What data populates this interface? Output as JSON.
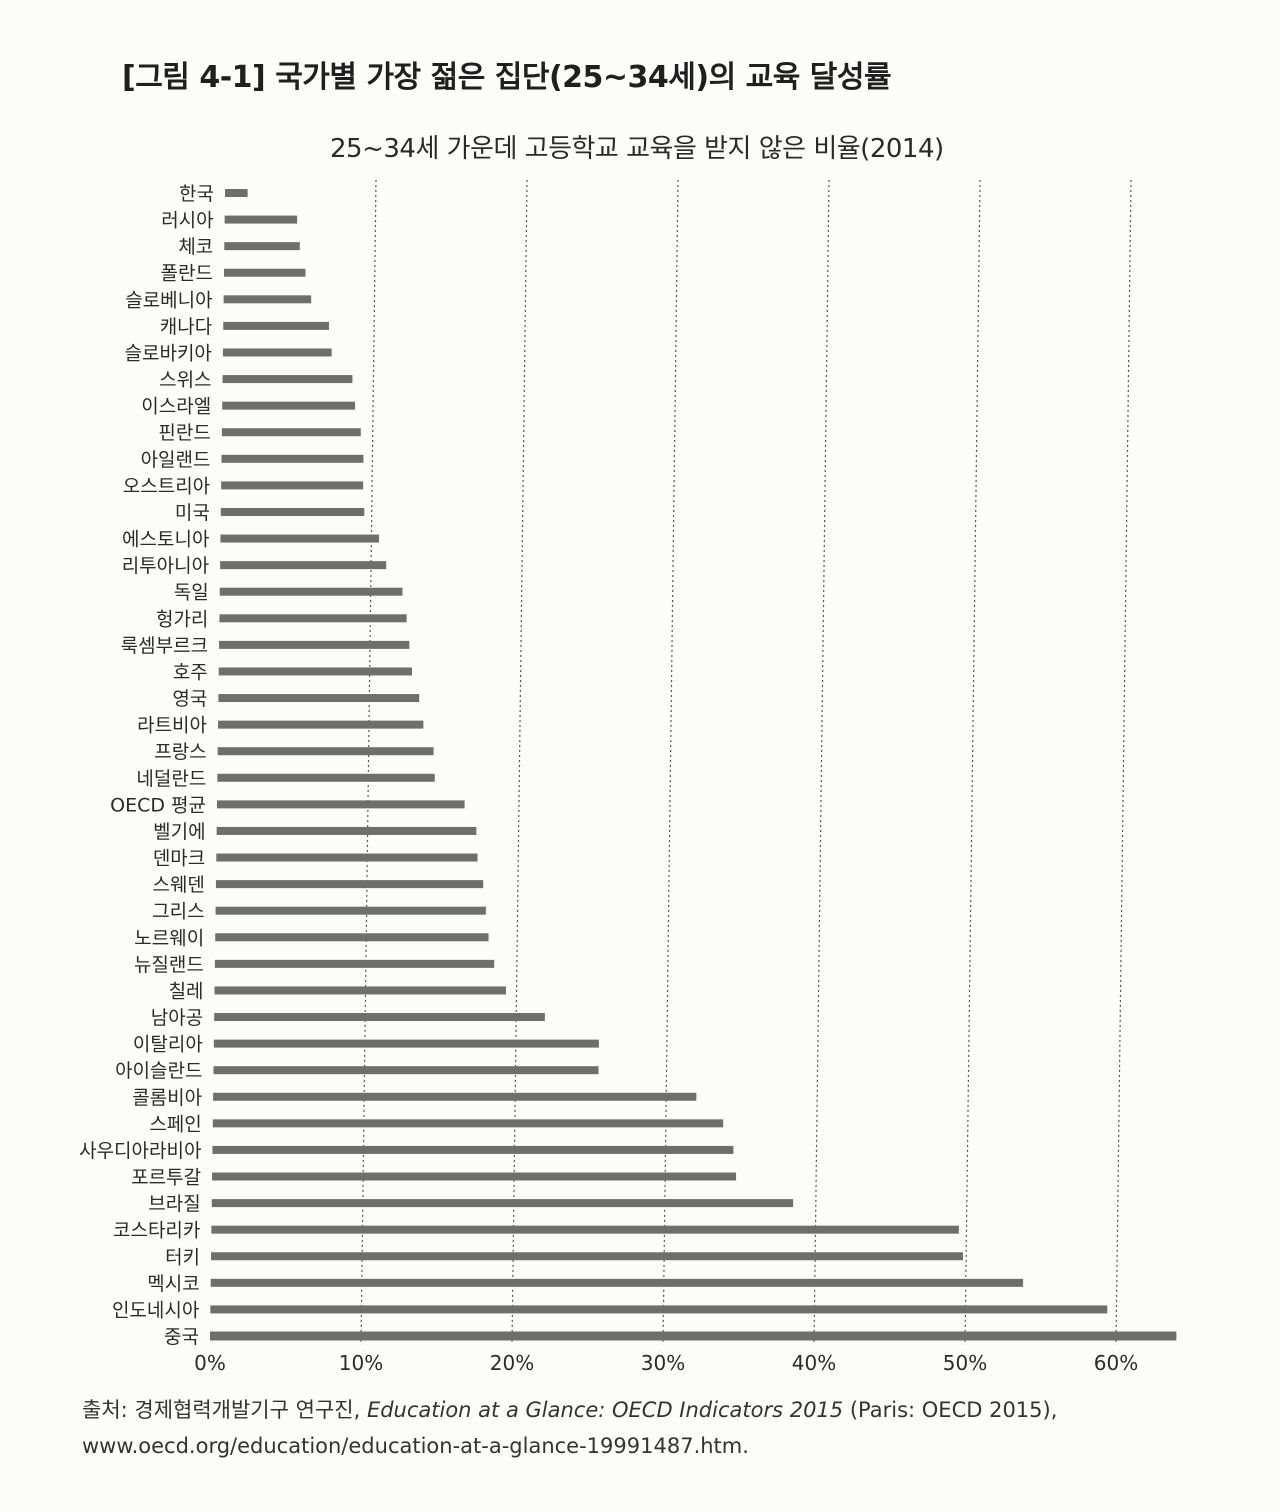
{
  "figure": {
    "title": "[그림 4-1]  국가별 가장 젊은 집단(25~34세)의 교육 달성률"
  },
  "chart_data": {
    "type": "bar",
    "orientation": "horizontal",
    "title": "25~34세 가운데 고등학교 교육을 받지 않은 비율(2014)",
    "xlabel": "",
    "ylabel": "",
    "xlim": [
      0,
      64
    ],
    "ticks": [
      0,
      10,
      20,
      30,
      40,
      50,
      60
    ],
    "tick_labels": [
      "0%",
      "10%",
      "20%",
      "30%",
      "40%",
      "50%",
      "60%"
    ],
    "grid": "vertical-dotted",
    "categories": [
      "한국",
      "러시아",
      "체코",
      "폴란드",
      "슬로베니아",
      "캐나다",
      "슬로바키아",
      "스위스",
      "이스라엘",
      "핀란드",
      "아일랜드",
      "오스트리아",
      "미국",
      "에스토니아",
      "리투아니아",
      "독일",
      "헝가리",
      "룩셈부르크",
      "호주",
      "영국",
      "라트비아",
      "프랑스",
      "네덜란드",
      "OECD 평균",
      "벨기에",
      "덴마크",
      "스웨덴",
      "그리스",
      "노르웨이",
      "뉴질랜드",
      "칠레",
      "남아공",
      "이탈리아",
      "아이슬란드",
      "콜롬비아",
      "스페인",
      "사우디아라비아",
      "포르투갈",
      "브라질",
      "코스타리카",
      "터키",
      "멕시코",
      "인도네시아",
      "중국"
    ],
    "values": [
      1.5,
      4.8,
      5.0,
      5.4,
      5.8,
      7.0,
      7.2,
      8.6,
      8.8,
      9.2,
      9.4,
      9.4,
      9.5,
      10.5,
      11.0,
      12.1,
      12.4,
      12.6,
      12.8,
      13.3,
      13.6,
      14.3,
      14.4,
      16.4,
      17.2,
      17.3,
      17.7,
      17.9,
      18.1,
      18.5,
      19.3,
      21.9,
      25.5,
      25.5,
      32.0,
      33.8,
      34.5,
      34.7,
      38.5,
      49.5,
      49.8,
      53.8,
      59.4,
      64.0
    ],
    "series_color": "#6e6e6e"
  },
  "footer": {
    "prefix": "출처: 경제협력개발기구 연구진, ",
    "source_title": "Education at a Glance: OECD Indicators 2015",
    "suffix": " (Paris: OECD 2015),",
    "url": "www.oecd.org/education/education-at-a-glance-19991487.htm."
  }
}
